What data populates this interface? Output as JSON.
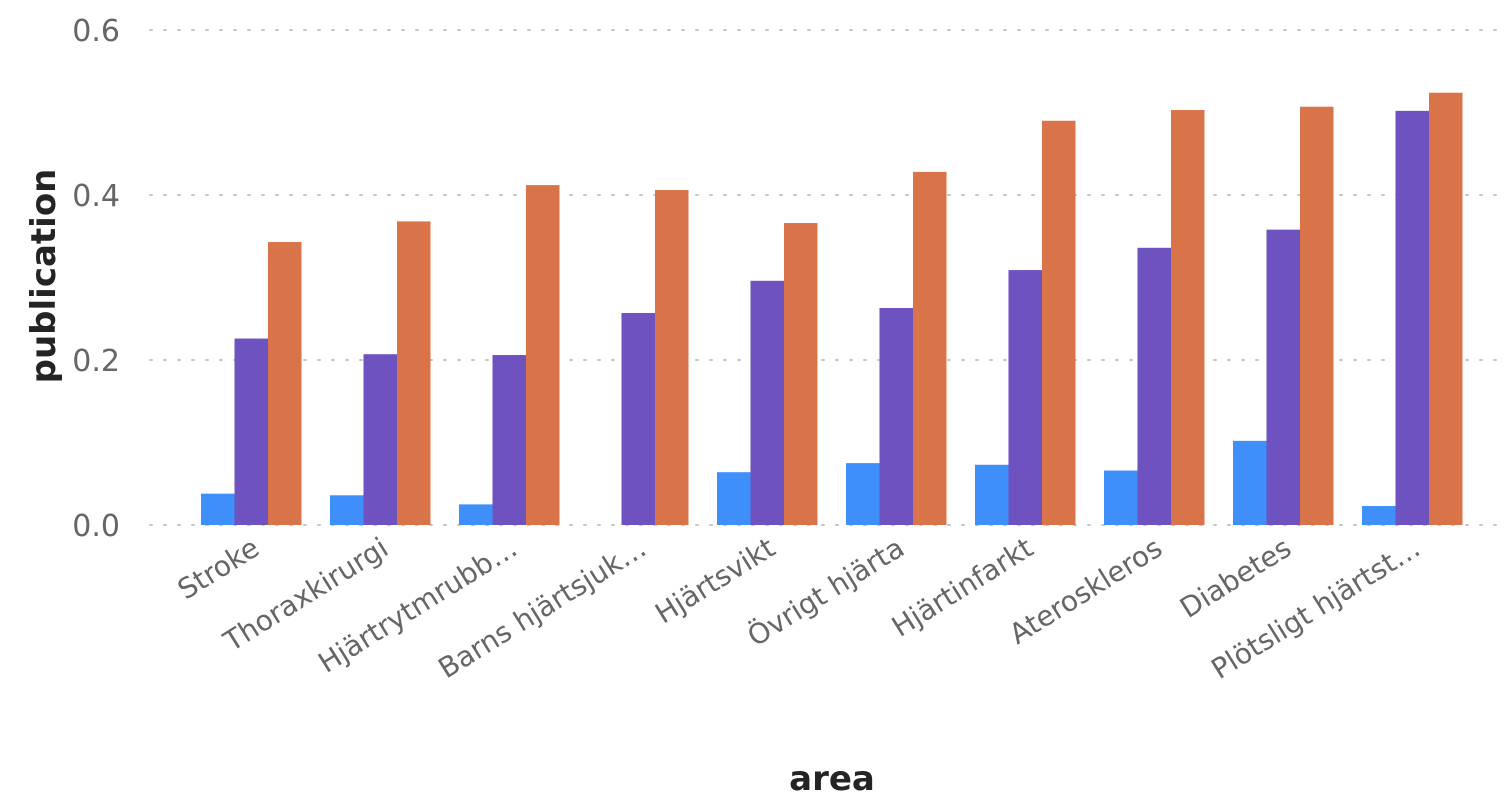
{
  "chart_data": {
    "type": "bar",
    "xlabel": "area",
    "ylabel": "publication",
    "ylim": [
      0,
      0.6
    ],
    "yticks": [
      "0.0",
      "0.2",
      "0.4",
      "0.6"
    ],
    "grid": true,
    "categories": [
      "Stroke",
      "Thoraxkirurgi",
      "Hjärtrytmrubb…",
      "Barns hjärtsjuk…",
      "Hjärtsvikt",
      "Övrigt hjärta",
      "Hjärtinfarkt",
      "Ateroskleros",
      "Diabetes",
      "Plötsligt hjärtst…"
    ],
    "series": [
      {
        "color": "#3f8ffb",
        "values": [
          0.038,
          0.036,
          0.025,
          0.0,
          0.064,
          0.075,
          0.073,
          0.066,
          0.102,
          0.023
        ]
      },
      {
        "color": "#6e52bf",
        "values": [
          0.226,
          0.207,
          0.206,
          0.257,
          0.296,
          0.263,
          0.309,
          0.336,
          0.358,
          0.502
        ]
      },
      {
        "color": "#d9744a",
        "values": [
          0.343,
          0.368,
          0.412,
          0.406,
          0.366,
          0.428,
          0.49,
          0.503,
          0.507,
          0.524
        ]
      }
    ]
  }
}
